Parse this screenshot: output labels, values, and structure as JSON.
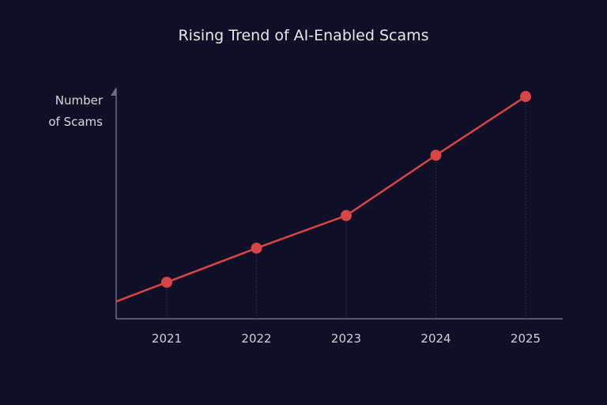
{
  "chart_data": {
    "type": "line",
    "title": "Rising Trend of AI-Enabled Scams",
    "ylabel_lines": [
      "Number",
      "of Scams"
    ],
    "xlabel": "",
    "categories": [
      "2021",
      "2022",
      "2023",
      "2024",
      "2025"
    ],
    "x": [
      2021,
      2022,
      2023,
      2024,
      2025
    ],
    "values": [
      46,
      89,
      130,
      206,
      280
    ],
    "ylim": [
      0,
      290
    ],
    "y_tick_labels_shown": false,
    "grid": false,
    "line_color": "#d94444",
    "background": "#0f1027"
  }
}
